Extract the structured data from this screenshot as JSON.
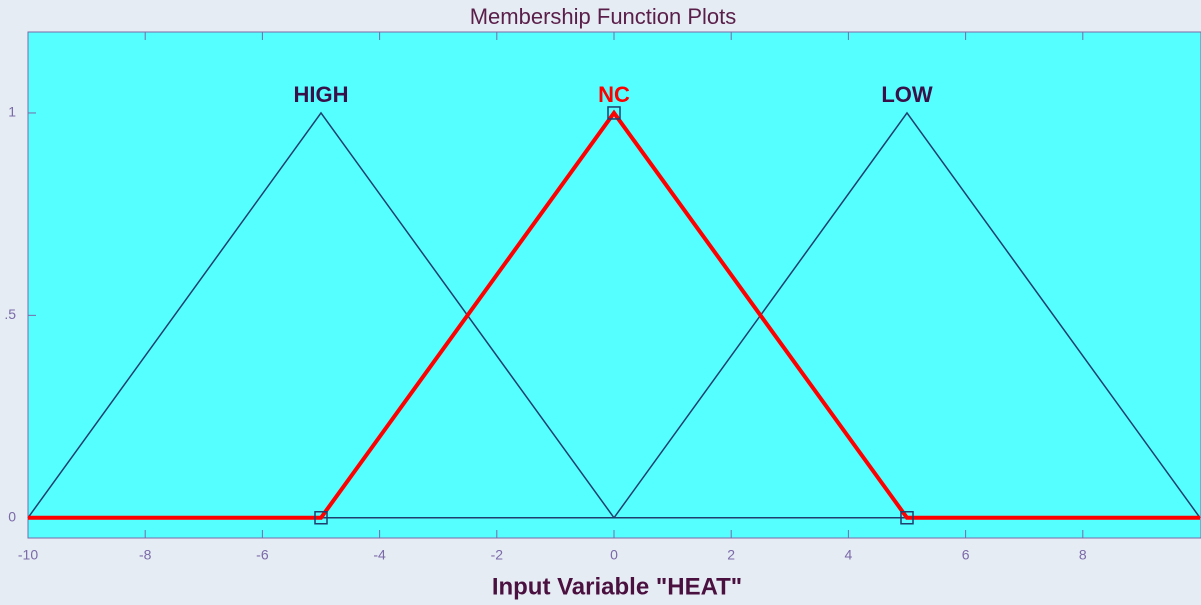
{
  "chart_data": {
    "type": "line",
    "title": "Membership Function Plots",
    "x_label": "Input Variable \"HEAT\"",
    "xlim": [
      -10,
      10
    ],
    "ylim": [
      -0.05,
      1.2
    ],
    "xticks": [
      -10,
      -8,
      -6,
      -4,
      -2,
      0,
      2,
      4,
      6,
      8
    ],
    "yticks": [
      0,
      {
        "value": 0.5,
        "label": ".5"
      },
      1
    ],
    "series": [
      {
        "name": "HIGH",
        "color": "#1f3f6e",
        "x": [
          -10,
          -5,
          0,
          10
        ],
        "values": [
          0,
          1,
          0,
          0
        ]
      },
      {
        "name": "NC",
        "color": "#ff0000",
        "x": [
          -10,
          -5,
          0,
          5,
          10
        ],
        "values": [
          0,
          0,
          1,
          0,
          0
        ]
      },
      {
        "name": "LOW",
        "color": "#1f3f6e",
        "x": [
          -10,
          0,
          5,
          10
        ],
        "values": [
          0,
          0,
          1,
          0
        ]
      }
    ]
  }
}
